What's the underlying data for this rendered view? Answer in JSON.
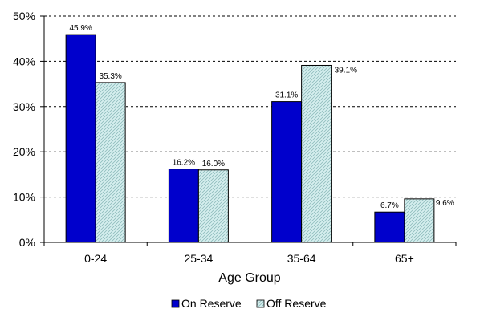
{
  "chart_data": {
    "type": "bar",
    "title": "",
    "xlabel": "Age Group",
    "ylabel": "",
    "categories": [
      "0-24",
      "25-34",
      "35-64",
      "65+"
    ],
    "ylim": [
      0,
      50
    ],
    "yticks": [
      0,
      10,
      20,
      30,
      40,
      50
    ],
    "ytick_labels": [
      "0%",
      "10%",
      "20%",
      "30%",
      "40%",
      "50%"
    ],
    "grid": true,
    "legend_position": "bottom",
    "series": [
      {
        "name": "On Reserve",
        "values": [
          45.9,
          16.2,
          31.1,
          6.7
        ],
        "labels": [
          "45.9%",
          "16.2%",
          "31.1%",
          "6.7%"
        ],
        "color": "#0000cc",
        "pattern": "solid"
      },
      {
        "name": "Off Reserve",
        "values": [
          35.3,
          16.0,
          39.1,
          9.6
        ],
        "labels": [
          "35.3%",
          "16.0%",
          "39.1%",
          "9.6%"
        ],
        "color": "#cce9e9",
        "pattern": "hatched"
      }
    ]
  }
}
